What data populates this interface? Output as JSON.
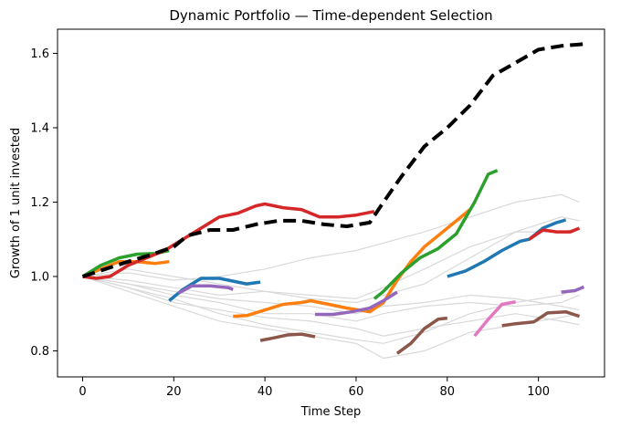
{
  "chart_data": {
    "type": "line",
    "title": "Dynamic Portfolio — Time-dependent Selection",
    "xlabel": "Time Step",
    "ylabel": "Growth of 1 unit invested",
    "xlim": [
      -5.5,
      114.5
    ],
    "ylim": [
      0.73,
      1.665
    ],
    "xticks": [
      0,
      20,
      40,
      60,
      80,
      100
    ],
    "yticks": [
      0.8,
      1.0,
      1.2,
      1.4,
      1.6
    ],
    "ytick_labels": [
      "0.8",
      "1.0",
      "1.2",
      "1.4",
      "1.6"
    ],
    "grid": false,
    "colors": {
      "portfolio": "#000000",
      "background": "#d9d9d9",
      "segments": [
        "#1f77b4",
        "#ff7f0e",
        "#2ca02c",
        "#d62728",
        "#9467bd",
        "#8c564b",
        "#e377c2"
      ]
    },
    "background_series": [
      {
        "x": [
          0,
          10,
          20,
          30,
          40,
          50,
          60,
          66,
          75,
          85,
          95,
          105,
          109
        ],
        "y": [
          1.0,
          0.98,
          0.96,
          0.94,
          0.93,
          0.92,
          0.9,
          0.92,
          0.93,
          0.95,
          0.94,
          0.92,
          0.91
        ]
      },
      {
        "x": [
          0,
          10,
          20,
          30,
          40,
          50,
          60,
          66,
          75,
          85,
          95,
          105,
          109
        ],
        "y": [
          1.0,
          0.99,
          0.97,
          0.95,
          0.96,
          0.95,
          0.94,
          0.97,
          1.02,
          1.08,
          1.12,
          1.12,
          1.13
        ]
      },
      {
        "x": [
          0,
          10,
          20,
          30,
          40,
          50,
          60,
          66,
          75,
          85,
          95,
          105,
          109
        ],
        "y": [
          1.0,
          0.97,
          0.93,
          0.91,
          0.89,
          0.88,
          0.86,
          0.84,
          0.86,
          0.88,
          0.9,
          0.88,
          0.87
        ]
      },
      {
        "x": [
          0,
          10,
          20,
          30,
          40,
          50,
          60,
          66,
          75,
          85,
          95,
          105,
          109
        ],
        "y": [
          1.0,
          1.02,
          1.0,
          0.98,
          0.96,
          0.94,
          0.93,
          0.95,
          0.98,
          1.05,
          1.12,
          1.16,
          1.15
        ]
      },
      {
        "x": [
          0,
          10,
          20,
          30,
          40,
          50,
          60,
          66,
          75,
          85,
          95,
          105,
          109
        ],
        "y": [
          1.0,
          0.96,
          0.92,
          0.88,
          0.86,
          0.84,
          0.82,
          0.78,
          0.8,
          0.85,
          0.87,
          0.89,
          0.9
        ]
      },
      {
        "x": [
          0,
          10,
          20,
          30,
          40,
          50,
          60,
          66,
          75,
          85,
          95,
          105,
          109
        ],
        "y": [
          1.0,
          1.01,
          0.99,
          1.0,
          1.02,
          1.05,
          1.07,
          1.09,
          1.12,
          1.16,
          1.2,
          1.22,
          1.2
        ]
      },
      {
        "x": [
          0,
          10,
          20,
          30,
          40,
          50,
          60,
          66,
          75,
          85,
          95,
          105,
          109
        ],
        "y": [
          1.0,
          0.98,
          0.95,
          0.93,
          0.9,
          0.9,
          0.88,
          0.9,
          0.92,
          0.93,
          0.92,
          0.93,
          0.95
        ]
      },
      {
        "x": [
          0,
          10,
          20,
          30,
          40,
          50,
          60,
          66,
          75,
          85,
          95,
          105,
          109
        ],
        "y": [
          1.0,
          0.97,
          0.94,
          0.9,
          0.87,
          0.85,
          0.83,
          0.82,
          0.85,
          0.9,
          0.93,
          0.95,
          0.97
        ]
      }
    ],
    "segments": [
      {
        "color_index": 1,
        "x": [
          0,
          4,
          8,
          12,
          16,
          19
        ],
        "y": [
          1.0,
          1.02,
          1.04,
          1.04,
          1.035,
          1.04
        ]
      },
      {
        "color_index": 2,
        "x": [
          0,
          4,
          8,
          12,
          16,
          19
        ],
        "y": [
          1.0,
          1.03,
          1.05,
          1.06,
          1.062,
          1.07
        ]
      },
      {
        "color_index": 3,
        "x": [
          0,
          3,
          6,
          10,
          14,
          18,
          22,
          26,
          30,
          34,
          38,
          40,
          44,
          48,
          52,
          56,
          60,
          64
        ],
        "y": [
          1.0,
          0.995,
          1.0,
          1.03,
          1.05,
          1.07,
          1.1,
          1.13,
          1.16,
          1.17,
          1.19,
          1.195,
          1.185,
          1.18,
          1.16,
          1.16,
          1.165,
          1.175
        ]
      },
      {
        "color_index": 0,
        "x": [
          19,
          22,
          26,
          30,
          34,
          36,
          39
        ],
        "y": [
          0.935,
          0.965,
          0.995,
          0.995,
          0.985,
          0.98,
          0.985
        ]
      },
      {
        "color_index": 4,
        "x": [
          21,
          24,
          28,
          32,
          33
        ],
        "y": [
          0.955,
          0.975,
          0.975,
          0.97,
          0.965
        ]
      },
      {
        "color_index": 1,
        "x": [
          33,
          36,
          40,
          44,
          48,
          50,
          54,
          58,
          63,
          66,
          69,
          72,
          75,
          78,
          82,
          85
        ],
        "y": [
          0.893,
          0.895,
          0.91,
          0.925,
          0.93,
          0.935,
          0.925,
          0.915,
          0.905,
          0.93,
          0.99,
          1.04,
          1.08,
          1.11,
          1.15,
          1.18
        ]
      },
      {
        "color_index": 5,
        "x": [
          39,
          42,
          45,
          48,
          51
        ],
        "y": [
          0.828,
          0.835,
          0.843,
          0.845,
          0.838
        ]
      },
      {
        "color_index": 4,
        "x": [
          51,
          55,
          59,
          63,
          66,
          69
        ],
        "y": [
          0.898,
          0.898,
          0.905,
          0.915,
          0.935,
          0.958
        ]
      },
      {
        "color_index": 2,
        "x": [
          64,
          66,
          70,
          74,
          78,
          82,
          86,
          89,
          91
        ],
        "y": [
          0.94,
          0.96,
          1.01,
          1.05,
          1.075,
          1.115,
          1.2,
          1.275,
          1.285
        ]
      },
      {
        "color_index": 5,
        "x": [
          69,
          72,
          75,
          78,
          80
        ],
        "y": [
          0.793,
          0.82,
          0.86,
          0.885,
          0.888
        ]
      },
      {
        "color_index": 0,
        "x": [
          80,
          84,
          88,
          92,
          96,
          98,
          101,
          104,
          106
        ],
        "y": [
          1.0,
          1.015,
          1.04,
          1.07,
          1.095,
          1.1,
          1.13,
          1.145,
          1.152
        ]
      },
      {
        "color_index": 6,
        "x": [
          86,
          89,
          92,
          95
        ],
        "y": [
          0.84,
          0.885,
          0.925,
          0.932
        ]
      },
      {
        "color_index": 3,
        "x": [
          98,
          101,
          104,
          107,
          109
        ],
        "y": [
          1.1,
          1.125,
          1.12,
          1.12,
          1.13
        ]
      },
      {
        "color_index": 5,
        "x": [
          92,
          95,
          99,
          102,
          106,
          109
        ],
        "y": [
          0.868,
          0.873,
          0.878,
          0.902,
          0.905,
          0.893
        ]
      },
      {
        "color_index": 4,
        "x": [
          105,
          108,
          110
        ],
        "y": [
          0.958,
          0.962,
          0.972
        ]
      }
    ],
    "portfolio": {
      "x": [
        0,
        5,
        10,
        15,
        20,
        23,
        28,
        33,
        38,
        43,
        48,
        53,
        58,
        63,
        66,
        70,
        75,
        80,
        85,
        90,
        95,
        100,
        105,
        110
      ],
      "y": [
        1.0,
        1.02,
        1.04,
        1.058,
        1.08,
        1.11,
        1.125,
        1.125,
        1.14,
        1.15,
        1.15,
        1.14,
        1.135,
        1.145,
        1.2,
        1.27,
        1.35,
        1.4,
        1.46,
        1.54,
        1.575,
        1.61,
        1.62,
        1.625
      ]
    }
  }
}
